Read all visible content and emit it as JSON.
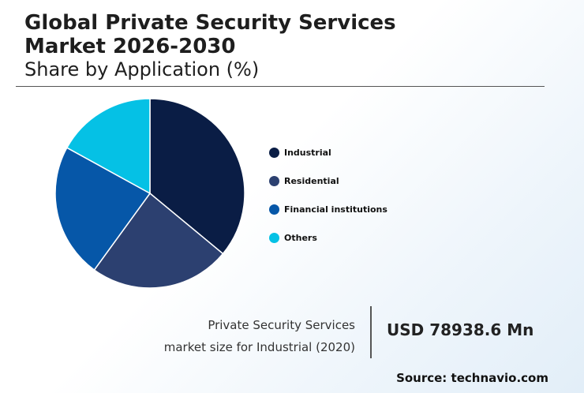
{
  "header": {
    "title": "Global Private Security Services Market 2026-2030",
    "subtitle": "Share by Application (%)"
  },
  "chart_data": {
    "type": "pie",
    "title": "Share by Application (%)",
    "categories": [
      "Industrial",
      "Residential",
      "Financial institutions",
      "Others"
    ],
    "values": [
      36,
      24,
      23,
      17
    ],
    "colors": [
      "#0a1d45",
      "#2c4070",
      "#0657a8",
      "#05c1e5"
    ],
    "legend_position": "right"
  },
  "legend": {
    "items": [
      {
        "label": "Industrial",
        "color": "#0a1d45"
      },
      {
        "label": "Residential",
        "color": "#2c4070"
      },
      {
        "label": "Financial institutions",
        "color": "#0657a8"
      },
      {
        "label": "Others",
        "color": "#05c1e5"
      }
    ]
  },
  "footer": {
    "market_line1": "Private Security Services",
    "market_line2": "market size for Industrial (2020)",
    "market_value": "USD 78938.6 Mn",
    "source": "Source: technavio.com"
  }
}
